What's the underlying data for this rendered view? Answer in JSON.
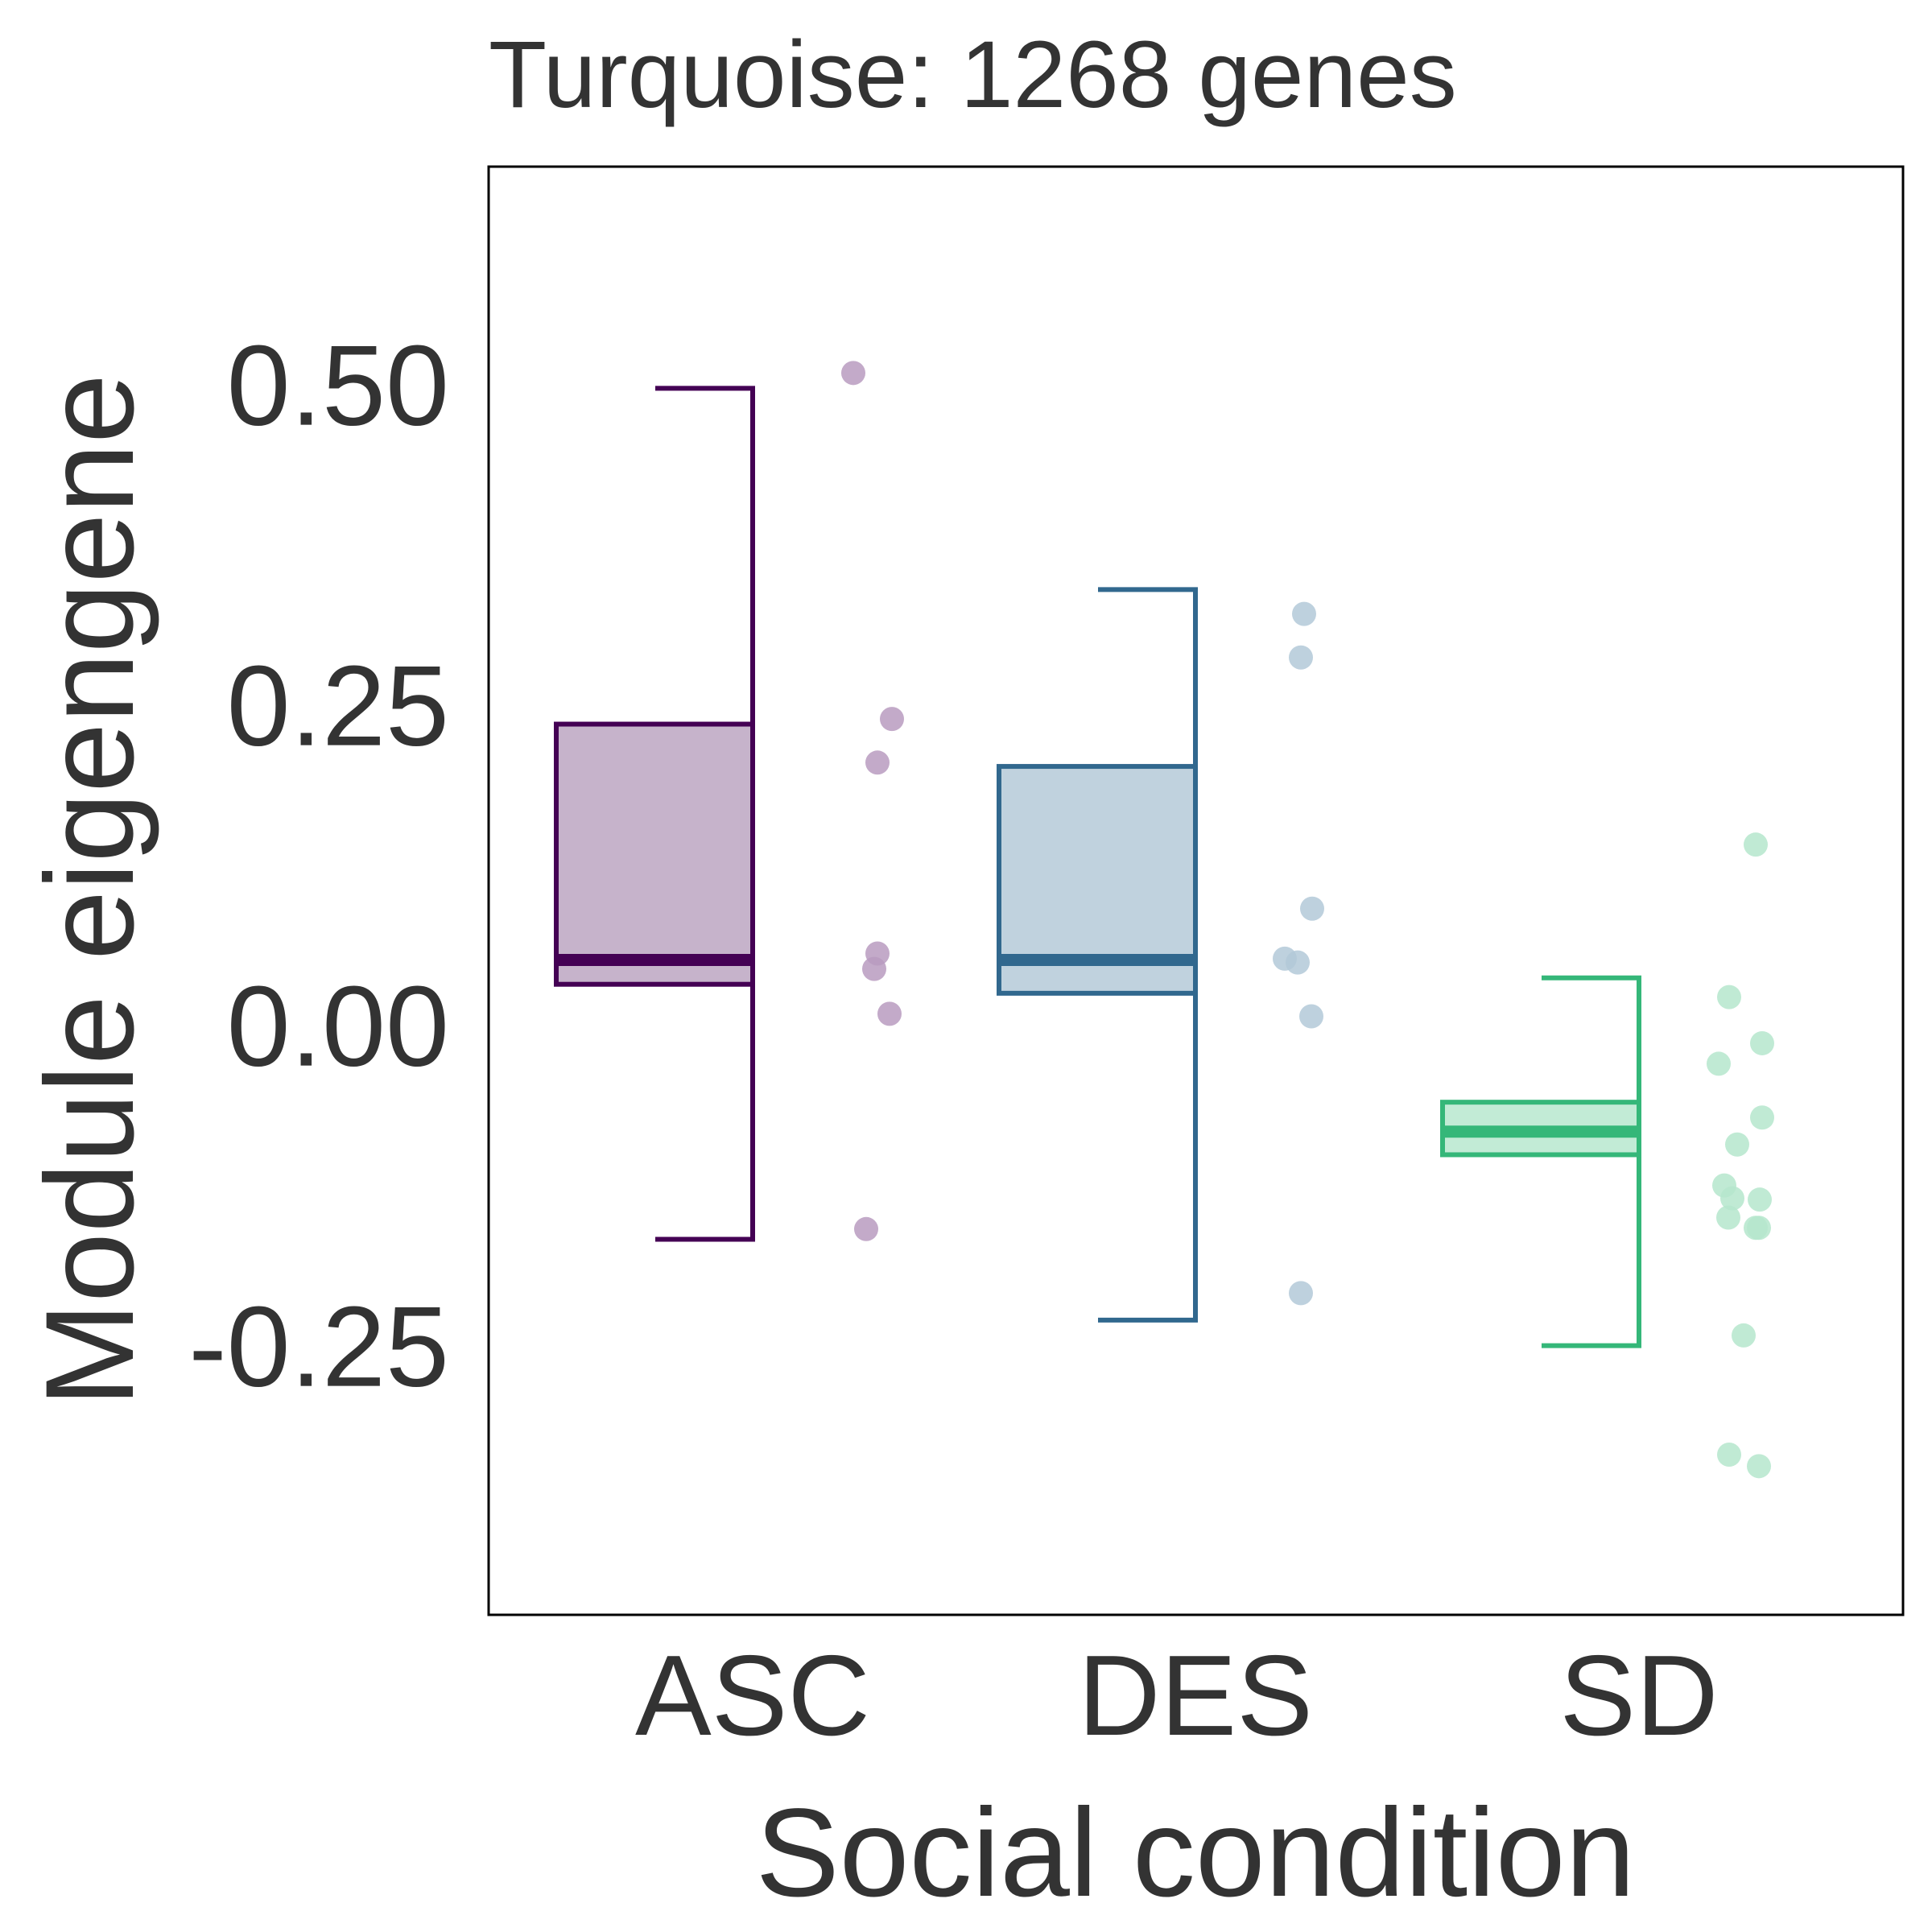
{
  "chart_data": {
    "type": "box",
    "title": "Turquoise: 1268 genes",
    "xlabel": "Social condition",
    "ylabel": "Module eigengene",
    "categories": [
      "ASC",
      "DES",
      "SD"
    ],
    "yticks": [
      -0.25,
      0.0,
      0.25,
      0.5
    ],
    "ytick_labels": [
      "-0.25",
      "0.00",
      "0.25",
      "0.50"
    ],
    "ylim": [
      -0.46,
      0.67
    ],
    "grid": false,
    "series": [
      {
        "category": "ASC",
        "color": "#440154",
        "fill": "#c6b3cb",
        "point_color": "#b99bc0",
        "min": -0.167,
        "q1": 0.032,
        "median": 0.051,
        "q3": 0.235,
        "max": 0.497,
        "points": [
          0.509,
          0.239,
          0.205,
          0.056,
          0.044,
          0.009,
          -0.159
        ]
      },
      {
        "category": "DES",
        "color": "#31688e",
        "fill": "#c0d2de",
        "point_color": "#b3c9d8",
        "min": -0.23,
        "q1": 0.025,
        "median": 0.051,
        "q3": 0.202,
        "max": 0.34,
        "points": [
          0.321,
          0.287,
          0.091,
          0.052,
          0.049,
          0.007,
          -0.209
        ]
      },
      {
        "category": "SD",
        "color": "#35b779",
        "fill": "#c2ebd6",
        "point_color": "#b5e6cd",
        "min": -0.25,
        "q1": -0.101,
        "median": -0.083,
        "q3": -0.06,
        "max": 0.037,
        "points": [
          0.141,
          0.022,
          -0.014,
          -0.03,
          -0.072,
          -0.093,
          -0.125,
          -0.135,
          -0.136,
          -0.15,
          -0.158,
          -0.158,
          -0.242,
          -0.335,
          -0.344
        ]
      }
    ]
  }
}
